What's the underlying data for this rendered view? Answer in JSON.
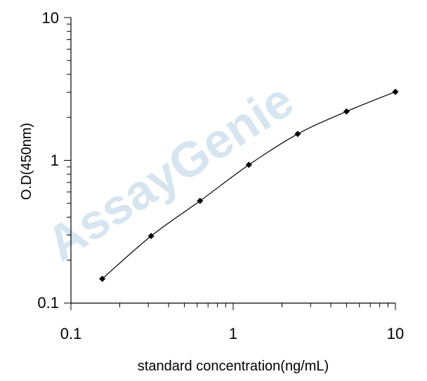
{
  "chart_data": {
    "type": "line",
    "x_scale": "log",
    "y_scale": "log",
    "xlim": [
      0.1,
      10
    ],
    "ylim": [
      0.1,
      10
    ],
    "x_ticks": [
      "0.1",
      "1",
      "10"
    ],
    "y_ticks": [
      "0.1",
      "1",
      "10"
    ],
    "xlabel": "standard concentration(ng/mL)",
    "ylabel": "O.D(450nm)",
    "series": [
      {
        "x": [
          0.156,
          0.312,
          0.625,
          1.25,
          2.5,
          5,
          10
        ],
        "y": [
          0.148,
          0.295,
          0.52,
          0.93,
          1.53,
          2.2,
          3.02
        ],
        "marker": "diamond",
        "line_color": "#000000"
      }
    ],
    "grid": false
  },
  "watermark": {
    "text": "AssayGenie",
    "color": "#6fa6c8"
  }
}
